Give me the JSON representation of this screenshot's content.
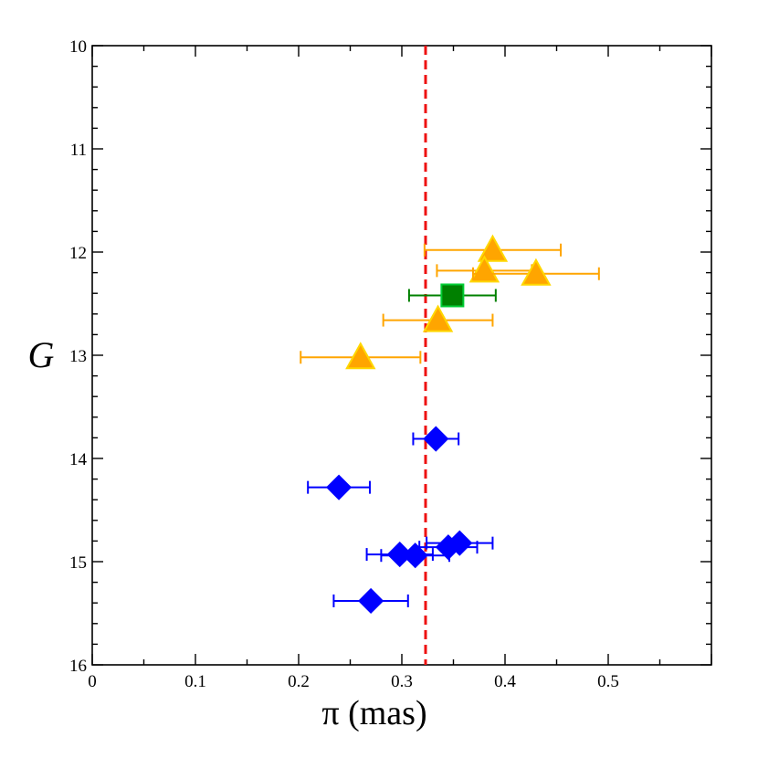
{
  "chart_data": {
    "type": "scatter",
    "title": "",
    "xlabel": "π  (mas)",
    "ylabel": "G",
    "xlim": [
      0,
      0.6
    ],
    "ylim": [
      16,
      10
    ],
    "y_inverted": true,
    "grid": false,
    "legend": "none",
    "x_ticks": [
      {
        "value": 0,
        "label": "0"
      },
      {
        "value": 0.1,
        "label": "0.1"
      },
      {
        "value": 0.2,
        "label": "0.2"
      },
      {
        "value": 0.3,
        "label": "0.3"
      },
      {
        "value": 0.4,
        "label": "0.4"
      },
      {
        "value": 0.5,
        "label": "0.5"
      }
    ],
    "y_ticks": [
      {
        "value": 10,
        "label": "10"
      },
      {
        "value": 11,
        "label": "11"
      },
      {
        "value": 12,
        "label": "12"
      },
      {
        "value": 13,
        "label": "13"
      },
      {
        "value": 14,
        "label": "14"
      },
      {
        "value": 15,
        "label": "15"
      },
      {
        "value": 16,
        "label": "16"
      }
    ],
    "reference_line": {
      "axis": "x",
      "value": 0.323,
      "color": "#ee1111",
      "style": "dashed"
    },
    "series": [
      {
        "marker": "triangle",
        "color": "#ffa500",
        "edge_color": "#ffd700",
        "error_color": "#ffa500",
        "points": [
          {
            "x": 0.388,
            "y": 11.98,
            "xerr": 0.066
          },
          {
            "x": 0.38,
            "y": 12.18,
            "xerr": 0.046
          },
          {
            "x": 0.43,
            "y": 12.21,
            "xerr": 0.061
          },
          {
            "x": 0.335,
            "y": 12.66,
            "xerr": 0.053
          },
          {
            "x": 0.26,
            "y": 13.02,
            "xerr": 0.058
          }
        ]
      },
      {
        "marker": "square",
        "color": "#008000",
        "edge_color": "#00cc33",
        "error_color": "#008000",
        "points": [
          {
            "x": 0.349,
            "y": 12.42,
            "xerr": 0.042
          }
        ]
      },
      {
        "marker": "diamond",
        "color": "#0000ff",
        "edge_color": "#0000ff",
        "error_color": "#0000ff",
        "points": [
          {
            "x": 0.333,
            "y": 13.81,
            "xerr": 0.022
          },
          {
            "x": 0.239,
            "y": 14.28,
            "xerr": 0.03
          },
          {
            "x": 0.356,
            "y": 14.82,
            "xerr": 0.032
          },
          {
            "x": 0.345,
            "y": 14.86,
            "xerr": 0.028
          },
          {
            "x": 0.298,
            "y": 14.93,
            "xerr": 0.032
          },
          {
            "x": 0.313,
            "y": 14.94,
            "xerr": 0.033
          },
          {
            "x": 0.27,
            "y": 15.38,
            "xerr": 0.036
          }
        ]
      }
    ]
  }
}
